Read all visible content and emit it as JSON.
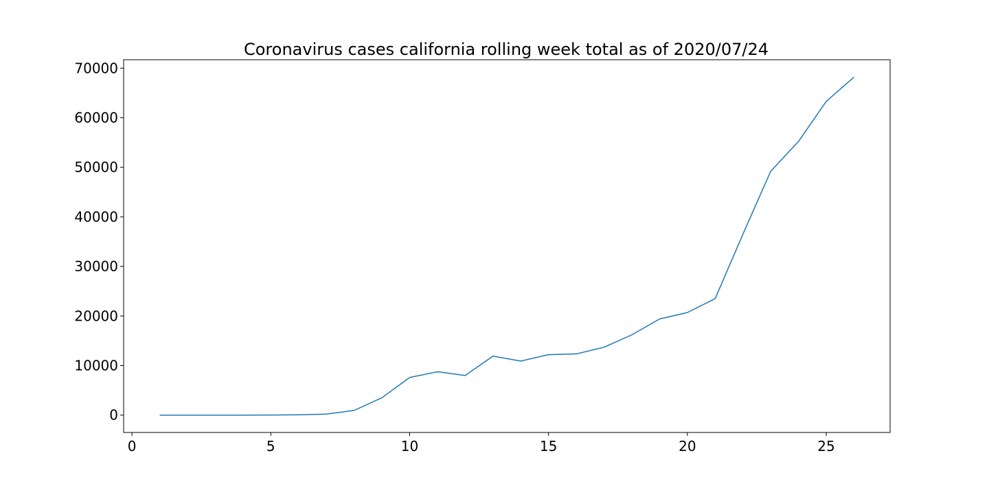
{
  "chart_data": {
    "type": "line",
    "title": "Coronavirus cases california rolling week total as of 2020/07/24",
    "xlabel": "",
    "ylabel": "",
    "xlim": [
      -0.3,
      27.3
    ],
    "ylim": [
      -3500,
      71700
    ],
    "x_ticks": [
      0,
      5,
      10,
      15,
      20,
      25
    ],
    "x_tick_labels": [
      "0",
      "5",
      "10",
      "15",
      "20",
      "25"
    ],
    "y_ticks": [
      0,
      10000,
      20000,
      30000,
      40000,
      50000,
      60000,
      70000
    ],
    "y_tick_labels": [
      "0",
      "10000",
      "20000",
      "30000",
      "40000",
      "50000",
      "60000",
      "70000"
    ],
    "grid": false,
    "legend": "none",
    "series": [
      {
        "color": "#1f77b4",
        "x": [
          1,
          2,
          3,
          4,
          5,
          6,
          7,
          8,
          9,
          10,
          11,
          12,
          13,
          14,
          15,
          16,
          17,
          18,
          19,
          20,
          21,
          22,
          23,
          24,
          25,
          26
        ],
        "y": [
          0,
          0,
          0,
          0,
          20,
          60,
          200,
          950,
          3500,
          7600,
          8750,
          8000,
          11900,
          10900,
          12200,
          12350,
          13700,
          16200,
          19400,
          20700,
          23500,
          36500,
          49200,
          55200,
          63300,
          68200
        ]
      }
    ]
  }
}
